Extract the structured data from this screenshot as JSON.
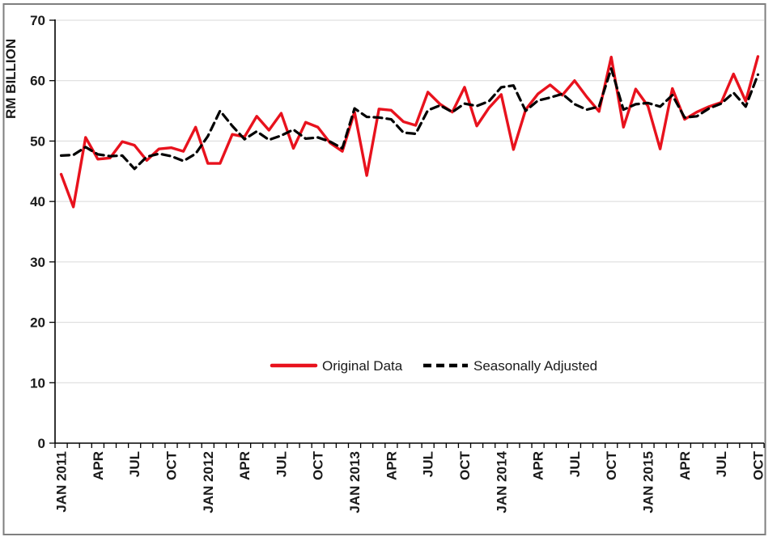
{
  "chart": {
    "y_axis_title": "RM BILLION",
    "y_tick_labels": [
      "0",
      "10",
      "20",
      "30",
      "40",
      "50",
      "60",
      "70"
    ],
    "legend": {
      "original_label": "Original Data",
      "adjusted_label": "Seasonally Adjusted"
    }
  },
  "chart_data": {
    "type": "line",
    "title": "",
    "xlabel": "",
    "ylabel": "RM BILLION",
    "ylim": [
      0,
      70
    ],
    "ytick_step": 10,
    "grid": "horizontal-only",
    "legend_position": "inside-plot-lower-center",
    "n_points": 58,
    "x_start": "JAN 2011",
    "x_end": "OCT 2015",
    "x_label_every_n_points": 3,
    "x_tick_labels": [
      "JAN 2011",
      "APR",
      "JUL",
      "OCT",
      "JAN 2012",
      "APR",
      "JUL",
      "OCT",
      "JAN 2013",
      "APR",
      "JUL",
      "OCT",
      "JAN 2014",
      "APR",
      "JUL",
      "OCT",
      "JAN 2015",
      "APR",
      "JUL",
      "OCT"
    ],
    "series": [
      {
        "name": "Original Data",
        "color": "#e8121d",
        "style": "solid",
        "values": [
          44.5,
          39.1,
          50.6,
          47.0,
          47.2,
          49.9,
          49.3,
          46.8,
          48.7,
          48.9,
          48.3,
          52.3,
          46.3,
          46.3,
          51.1,
          50.7,
          54.1,
          51.8,
          54.6,
          48.8,
          53.1,
          52.3,
          49.7,
          48.3,
          54.8,
          44.3,
          55.3,
          55.1,
          53.2,
          52.6,
          58.1,
          56.1,
          54.8,
          58.9,
          52.5,
          55.5,
          57.7,
          48.6,
          55.2,
          57.8,
          59.3,
          57.6,
          60.0,
          57.3,
          54.9,
          63.9,
          52.3,
          58.6,
          55.8,
          48.7,
          58.7,
          53.6,
          54.8,
          55.7,
          56.4,
          61.1,
          56.6,
          64.0
        ]
      },
      {
        "name": "Seasonally Adjusted",
        "color": "#000000",
        "style": "dashed",
        "values": [
          47.6,
          47.7,
          49.0,
          47.8,
          47.5,
          47.6,
          45.4,
          47.4,
          47.9,
          47.5,
          46.7,
          47.9,
          50.8,
          55.0,
          52.5,
          50.3,
          51.6,
          50.2,
          50.9,
          51.9,
          50.4,
          50.6,
          49.9,
          48.8,
          55.4,
          54.0,
          53.9,
          53.6,
          51.4,
          51.2,
          55.1,
          55.9,
          54.8,
          56.2,
          55.8,
          56.6,
          58.9,
          59.2,
          55.0,
          56.7,
          57.2,
          57.8,
          56.1,
          55.2,
          55.7,
          62.0,
          55.2,
          56.1,
          56.3,
          55.7,
          57.6,
          53.9,
          54.1,
          55.4,
          56.2,
          58.0,
          55.7,
          61.0
        ]
      }
    ]
  }
}
